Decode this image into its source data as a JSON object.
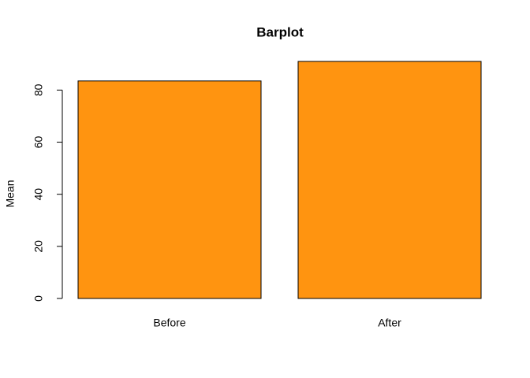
{
  "chart_data": {
    "type": "bar",
    "title": "Barplot",
    "y_label": "Mean",
    "categories": [
      "Before",
      "After"
    ],
    "values": [
      83.5,
      91
    ],
    "color": "#ff9410",
    "ylim": [
      0,
      91
    ],
    "yticks": [
      0,
      20,
      40,
      60,
      80
    ],
    "grid": false
  }
}
